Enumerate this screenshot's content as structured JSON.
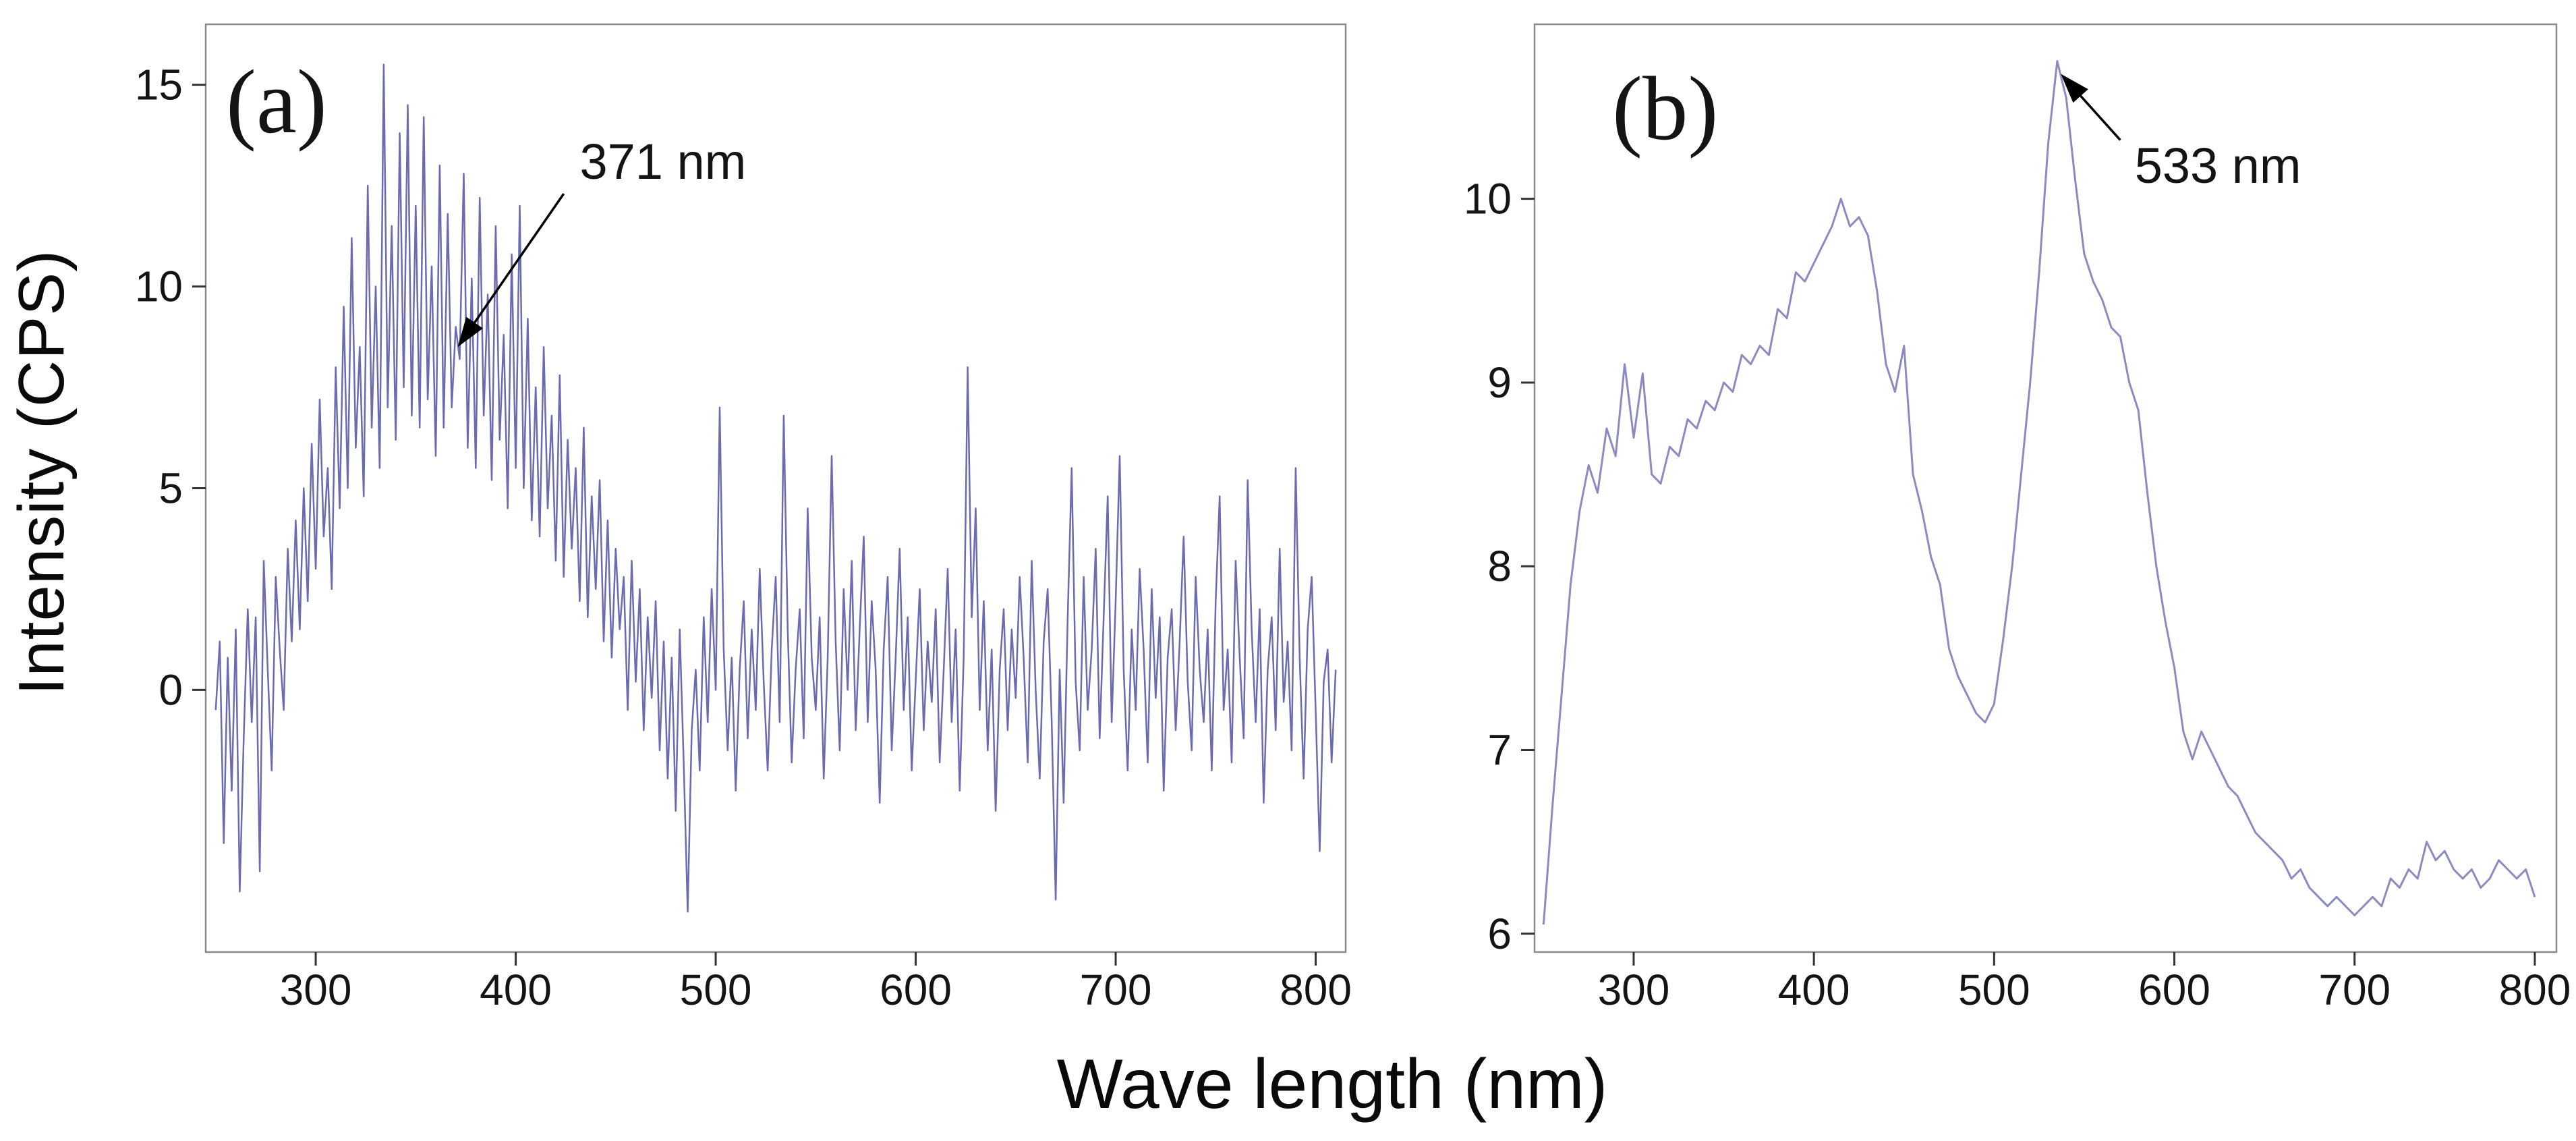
{
  "labels": {
    "y": "Intensity (CPS)",
    "x": "Wave length (nm)"
  },
  "colors": {
    "line_a": "#6b6bb2",
    "line_b": "#8b8bc0",
    "frame": "#8a8a8a",
    "tick": "#333333",
    "annotation": "#000000"
  },
  "chart_data": [
    {
      "type": "line",
      "panel": "(a)",
      "title": "",
      "xlabel": "Wave length (nm)",
      "ylabel": "Intensity (CPS)",
      "xlim": [
        245,
        815
      ],
      "ylim": [
        -6.5,
        16.5
      ],
      "xticks": [
        300,
        400,
        500,
        600,
        700,
        800
      ],
      "yticks": [
        0,
        5,
        10,
        15
      ],
      "grid": false,
      "legend": "none",
      "annotation": {
        "label": "371 nm",
        "text_xy": [
          432,
          13.1
        ],
        "arrow_from": [
          424,
          12.3
        ],
        "arrow_to": [
          371,
          8.5
        ]
      },
      "x_start": 250,
      "x_step": 2,
      "values": [
        -0.5,
        1.2,
        -3.8,
        0.8,
        -2.5,
        1.5,
        -5.0,
        -1.2,
        2.0,
        -0.8,
        1.8,
        -4.5,
        3.2,
        0.5,
        -2.0,
        2.8,
        1.0,
        -0.5,
        3.5,
        1.2,
        4.2,
        1.5,
        5.0,
        2.2,
        6.1,
        3.0,
        7.2,
        3.8,
        5.5,
        2.5,
        8.0,
        4.5,
        9.5,
        5.0,
        11.2,
        6.0,
        8.5,
        4.8,
        12.5,
        6.5,
        10.0,
        5.5,
        15.5,
        7.0,
        11.5,
        6.2,
        13.8,
        7.5,
        14.5,
        6.8,
        12.0,
        6.5,
        14.2,
        7.2,
        10.5,
        5.8,
        13.0,
        6.5,
        11.8,
        7.0,
        9.0,
        8.2,
        12.8,
        6.0,
        10.2,
        5.5,
        12.2,
        6.8,
        9.8,
        5.2,
        11.5,
        6.2,
        8.8,
        4.5,
        10.8,
        5.5,
        12.0,
        5.0,
        9.2,
        4.2,
        7.5,
        3.8,
        8.5,
        4.5,
        6.8,
        3.2,
        7.8,
        2.8,
        6.2,
        3.5,
        5.5,
        2.2,
        6.5,
        1.8,
        4.8,
        2.5,
        5.2,
        1.2,
        4.2,
        0.8,
        3.5,
        1.5,
        2.8,
        -0.5,
        3.2,
        0.2,
        2.5,
        -1.0,
        1.8,
        -0.2,
        2.2,
        -1.5,
        1.2,
        -2.2,
        0.8,
        -3.0,
        1.5,
        -1.8,
        -5.5,
        -1.0,
        0.5,
        -2.0,
        1.8,
        -0.8,
        2.5,
        0.0,
        7.0,
        1.0,
        -1.5,
        0.8,
        -2.5,
        0.5,
        2.2,
        -1.2,
        1.5,
        -0.5,
        3.0,
        0.2,
        -2.0,
        1.0,
        2.8,
        -0.8,
        6.8,
        1.5,
        -1.8,
        0.5,
        2.0,
        -1.2,
        4.5,
        0.8,
        -0.5,
        1.8,
        -2.2,
        0.8,
        5.8,
        1.2,
        -1.5,
        2.5,
        0.0,
        3.2,
        -1.0,
        1.5,
        3.8,
        -0.8,
        2.2,
        0.5,
        -2.8,
        1.0,
        2.8,
        -1.5,
        0.8,
        3.5,
        -0.5,
        1.8,
        -2.0,
        0.2,
        2.5,
        -1.0,
        1.2,
        -0.3,
        2.0,
        -1.8,
        0.5,
        3.0,
        -0.8,
        1.5,
        -2.5,
        0.8,
        8.0,
        1.8,
        4.5,
        -0.5,
        2.2,
        -1.5,
        1.0,
        -3.0,
        0.5,
        2.0,
        -1.0,
        1.5,
        -0.2,
        2.8,
        0.8,
        -1.8,
        3.2,
        0.0,
        -2.2,
        1.2,
        2.5,
        -0.8,
        -5.2,
        0.5,
        -2.8,
        1.8,
        5.5,
        0.2,
        -1.5,
        2.8,
        -0.5,
        1.0,
        3.5,
        -1.2,
        1.8,
        4.8,
        -0.8,
        2.2,
        5.8,
        0.5,
        -2.0,
        1.5,
        -0.5,
        3.0,
        1.0,
        -1.8,
        2.5,
        -0.2,
        1.8,
        -2.5,
        0.8,
        2.0,
        -1.0,
        1.2,
        3.8,
        0.2,
        -1.5,
        2.8,
        0.5,
        -0.8,
        1.5,
        -2.0,
        2.2,
        4.8,
        -0.5,
        1.0,
        -1.8,
        3.2,
        0.8,
        -1.2,
        5.2,
        1.5,
        -0.8,
        2.0,
        -2.8,
        0.5,
        1.8,
        -1.0,
        3.5,
        -0.3,
        1.2,
        -1.5,
        5.5,
        0.8,
        -2.2,
        1.5,
        2.8,
        -0.5,
        -4.0,
        0.2,
        1.0,
        -1.8,
        0.5
      ]
    },
    {
      "type": "line",
      "panel": "(b)",
      "title": "",
      "xlabel": "Wave length (nm)",
      "ylabel": "Intensity (CPS)",
      "xlim": [
        245,
        812
      ],
      "ylim": [
        5.9,
        10.95
      ],
      "xticks": [
        300,
        400,
        500,
        600,
        700,
        800
      ],
      "yticks": [
        6,
        7,
        8,
        9,
        10
      ],
      "grid": false,
      "legend": "none",
      "annotation": {
        "label": "533 nm",
        "text_xy": [
          578,
          10.18
        ],
        "arrow_from": [
          570,
          10.32
        ],
        "arrow_to": [
          537,
          10.68
        ]
      },
      "x_start": 250,
      "x_step": 5,
      "values": [
        6.05,
        6.7,
        7.3,
        7.9,
        8.3,
        8.55,
        8.4,
        8.75,
        8.6,
        9.1,
        8.7,
        9.05,
        8.5,
        8.45,
        8.65,
        8.6,
        8.8,
        8.75,
        8.9,
        8.85,
        9.0,
        8.95,
        9.15,
        9.1,
        9.2,
        9.15,
        9.4,
        9.35,
        9.6,
        9.55,
        9.65,
        9.75,
        9.85,
        10.0,
        9.85,
        9.9,
        9.8,
        9.5,
        9.1,
        8.95,
        9.2,
        8.5,
        8.3,
        8.05,
        7.9,
        7.55,
        7.4,
        7.3,
        7.2,
        7.15,
        7.25,
        7.6,
        8.0,
        8.5,
        9.0,
        9.6,
        10.3,
        10.75,
        10.55,
        10.1,
        9.7,
        9.55,
        9.45,
        9.3,
        9.25,
        9.0,
        8.85,
        8.4,
        8.0,
        7.7,
        7.45,
        7.1,
        6.95,
        7.1,
        7.0,
        6.9,
        6.8,
        6.75,
        6.65,
        6.55,
        6.5,
        6.45,
        6.4,
        6.3,
        6.35,
        6.25,
        6.2,
        6.15,
        6.2,
        6.15,
        6.1,
        6.15,
        6.2,
        6.15,
        6.3,
        6.25,
        6.35,
        6.3,
        6.5,
        6.4,
        6.45,
        6.35,
        6.3,
        6.35,
        6.25,
        6.3,
        6.4,
        6.35,
        6.3,
        6.35,
        6.2
      ]
    }
  ]
}
